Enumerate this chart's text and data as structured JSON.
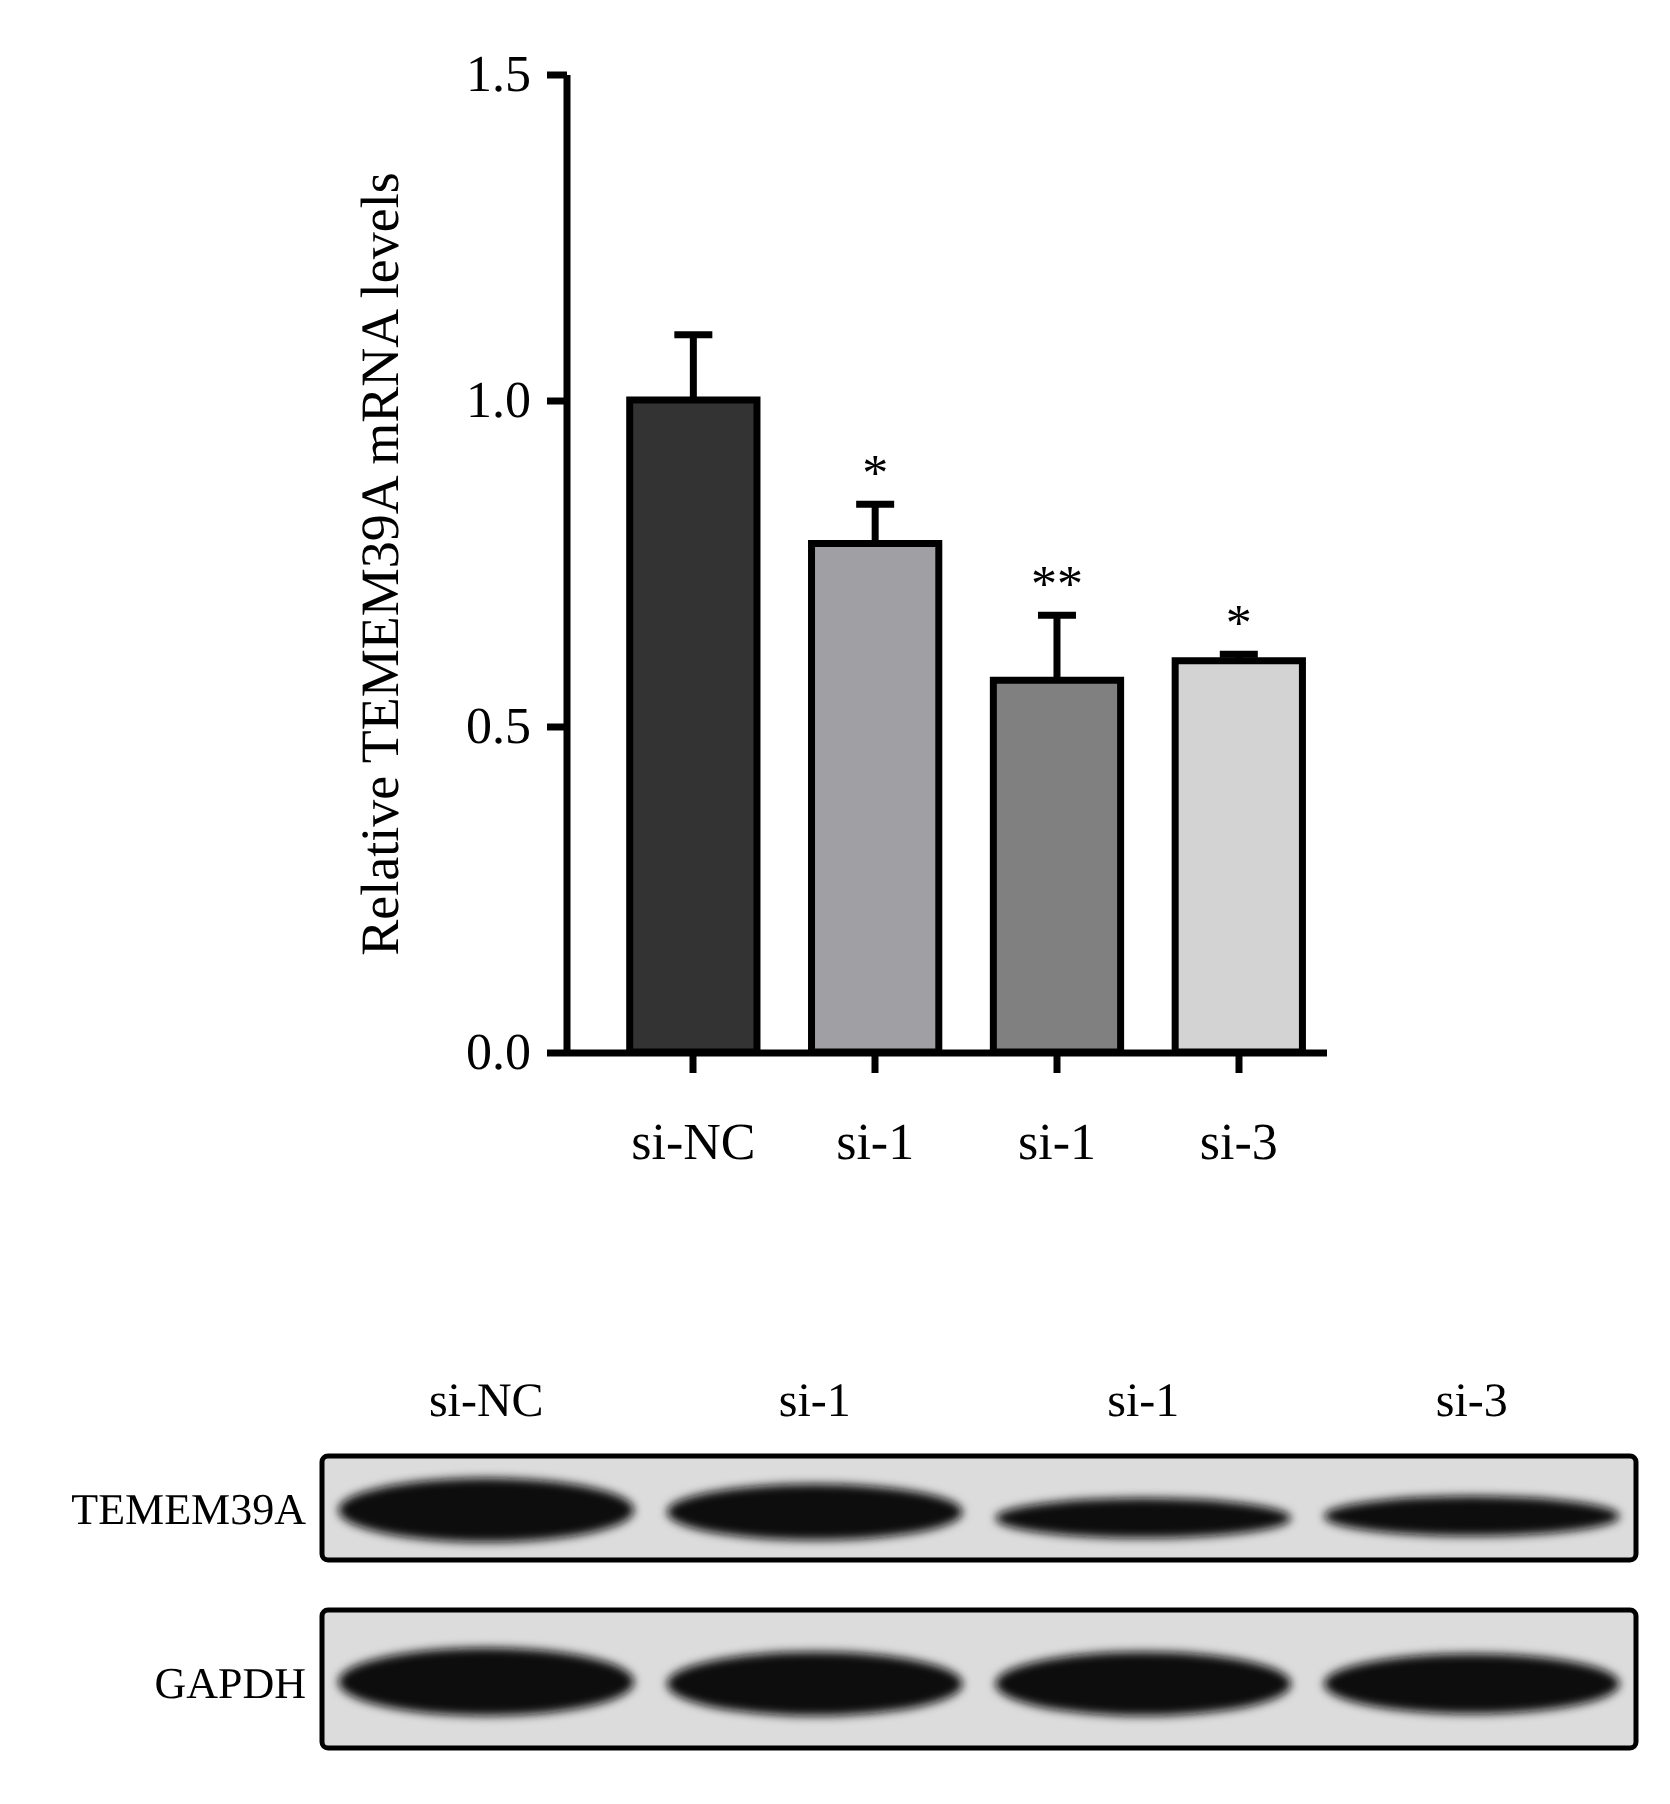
{
  "chart_data": {
    "type": "bar",
    "ylabel": "Relative TEMEM39A mRNA levels",
    "categories": [
      "si-NC",
      "si-1",
      "si-1",
      "si-3"
    ],
    "values": [
      1.0,
      0.78,
      0.57,
      0.6
    ],
    "errors": [
      0.1,
      0.06,
      0.1,
      0.01
    ],
    "colors": [
      "#333333",
      "#a0a0a4",
      "#808080",
      "#d3d3d3"
    ],
    "value_labels": [
      null,
      "*",
      "**",
      "*"
    ],
    "ylim": [
      0,
      1.5
    ],
    "yticks": [
      {
        "value": 0,
        "label": "0.0"
      },
      0.5,
      {
        "value": 1,
        "label": "1.0"
      },
      1.5
    ],
    "annotations": [
      "TEMEM39A",
      "GAPDH"
    ]
  }
}
